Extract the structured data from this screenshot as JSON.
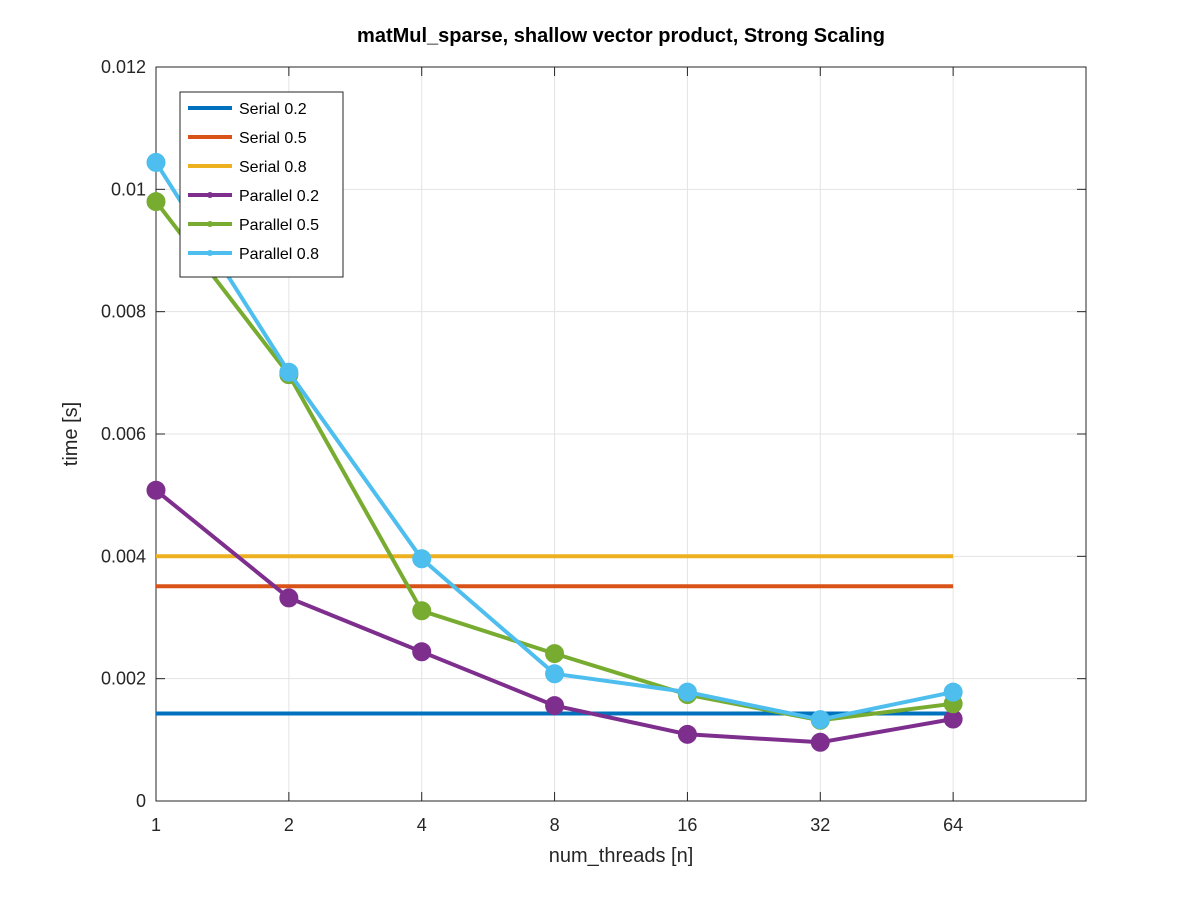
{
  "chart_data": {
    "type": "line",
    "title": "matMul_sparse, shallow vector product, Strong Scaling",
    "xlabel": "num_threads [n]",
    "ylabel": "time [s]",
    "x_scale": "log2",
    "x": [
      1,
      2,
      4,
      8,
      16,
      32,
      64
    ],
    "x_tick_labels": [
      "1",
      "2",
      "4",
      "8",
      "16",
      "32",
      "64"
    ],
    "xlim": [
      1,
      128
    ],
    "ylim": [
      0,
      0.012
    ],
    "y_ticks": [
      0,
      0.002,
      0.004,
      0.006,
      0.008,
      0.01,
      0.012
    ],
    "y_tick_labels": [
      "0",
      "0.002",
      "0.004",
      "0.006",
      "0.008",
      "0.01",
      "0.012"
    ],
    "grid": true,
    "legend_position": "top-left",
    "series": [
      {
        "name": "Serial 0.2",
        "color": "#0072BD",
        "markers": false,
        "values": [
          0.00143,
          0.00143,
          0.00143,
          0.00143,
          0.00143,
          0.00143,
          0.00143
        ]
      },
      {
        "name": "Serial 0.5",
        "color": "#D95319",
        "markers": false,
        "values": [
          0.00351,
          0.00351,
          0.00351,
          0.00351,
          0.00351,
          0.00351,
          0.00351
        ]
      },
      {
        "name": "Serial 0.8",
        "color": "#EDB120",
        "markers": false,
        "values": [
          0.004,
          0.004,
          0.004,
          0.004,
          0.004,
          0.004,
          0.004
        ]
      },
      {
        "name": "Parallel 0.2",
        "color": "#7E2F8E",
        "markers": true,
        "values": [
          0.00508,
          0.00332,
          0.00244,
          0.00156,
          0.00109,
          0.00096,
          0.00134
        ]
      },
      {
        "name": "Parallel 0.5",
        "color": "#77AC30",
        "markers": true,
        "values": [
          0.0098,
          0.00697,
          0.00311,
          0.00241,
          0.00174,
          0.00132,
          0.00159
        ]
      },
      {
        "name": "Parallel 0.8",
        "color": "#4DBEEE",
        "markers": true,
        "values": [
          0.01044,
          0.00701,
          0.00396,
          0.00208,
          0.00178,
          0.00133,
          0.00178
        ]
      }
    ]
  }
}
